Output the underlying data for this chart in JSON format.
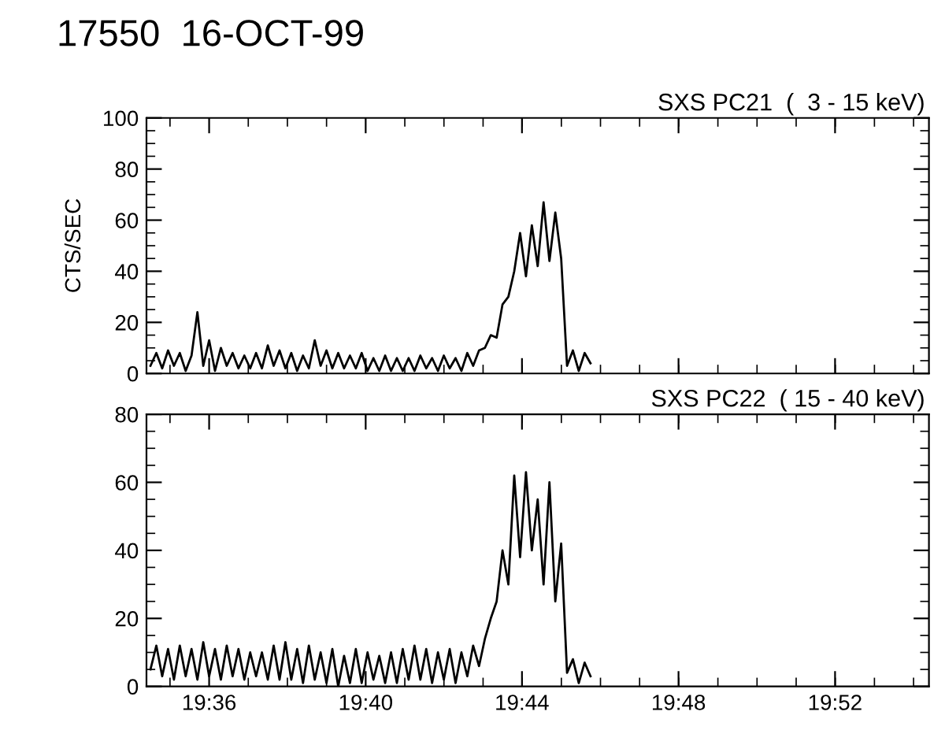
{
  "chart_data": [
    {
      "type": "line",
      "title": "17550  16-OCT-99",
      "subtitle": "SXS PC21  (  3 - 15 keV)",
      "ylabel": "CTS/SEC",
      "x": [
        19.575,
        19.5775,
        19.58,
        19.5825,
        19.585,
        19.5875,
        19.59,
        19.5925,
        19.595,
        19.5975,
        19.6,
        19.6025,
        19.605,
        19.6075,
        19.61,
        19.6125,
        19.615,
        19.6175,
        19.62,
        19.6225,
        19.625,
        19.6275,
        19.63,
        19.6325,
        19.635,
        19.6375,
        19.64,
        19.6425,
        19.645,
        19.6475,
        19.65,
        19.6525,
        19.655,
        19.6575,
        19.66,
        19.6625,
        19.665,
        19.6675,
        19.67,
        19.6725,
        19.675,
        19.6775,
        19.68,
        19.6825,
        19.685,
        19.6875,
        19.69,
        19.6925,
        19.695,
        19.6975,
        19.7,
        19.7025,
        19.705,
        19.7075,
        19.71,
        19.7125,
        19.715,
        19.7175,
        19.72,
        19.7225,
        19.725,
        19.7275,
        19.73,
        19.7325,
        19.735,
        19.7375,
        19.74,
        19.7425,
        19.745,
        19.7475,
        19.75,
        19.7525,
        19.755,
        19.7575,
        19.76,
        19.7625
      ],
      "series": [
        {
          "color": "#000000",
          "values": [
            3,
            8,
            2,
            9,
            3,
            8,
            1,
            7,
            24,
            3,
            13,
            1,
            10,
            3,
            8,
            2,
            7,
            2,
            8,
            2,
            11,
            3,
            9,
            2,
            8,
            1,
            7,
            2,
            13,
            3,
            9,
            2,
            8,
            2,
            7,
            2,
            8,
            1,
            6,
            1,
            7,
            1,
            6,
            1,
            6,
            1,
            7,
            2,
            6,
            1,
            7,
            2,
            6,
            1,
            8,
            3,
            9,
            10,
            15,
            14,
            27,
            30,
            40,
            55,
            38,
            58,
            42,
            67,
            44,
            63,
            45,
            3,
            9,
            1,
            8,
            4
          ]
        }
      ],
      "xlim": [
        19.5733,
        19.9067
      ],
      "ylim": [
        0,
        100
      ],
      "xticks": [
        {
          "value": 19.6,
          "label": null
        },
        {
          "value": 19.6667,
          "label": null
        },
        {
          "value": 19.7333,
          "label": null
        },
        {
          "value": 19.8,
          "label": null
        },
        {
          "value": 19.8667,
          "label": null
        }
      ],
      "yticks": [
        0,
        20,
        40,
        60,
        80,
        100
      ],
      "tick_labels": "y",
      "grid": false,
      "marker": "none",
      "line_style": "solid"
    },
    {
      "type": "line",
      "subtitle": "SXS PC22  ( 15 - 40 keV)",
      "x": [
        19.575,
        19.5775,
        19.58,
        19.5825,
        19.585,
        19.5875,
        19.59,
        19.5925,
        19.595,
        19.5975,
        19.6,
        19.6025,
        19.605,
        19.6075,
        19.61,
        19.6125,
        19.615,
        19.6175,
        19.62,
        19.6225,
        19.625,
        19.6275,
        19.63,
        19.6325,
        19.635,
        19.6375,
        19.64,
        19.6425,
        19.645,
        19.6475,
        19.65,
        19.6525,
        19.655,
        19.6575,
        19.66,
        19.6625,
        19.665,
        19.6675,
        19.67,
        19.6725,
        19.675,
        19.6775,
        19.68,
        19.6825,
        19.685,
        19.6875,
        19.69,
        19.6925,
        19.695,
        19.6975,
        19.7,
        19.7025,
        19.705,
        19.7075,
        19.71,
        19.7125,
        19.715,
        19.7175,
        19.72,
        19.7225,
        19.725,
        19.7275,
        19.73,
        19.7325,
        19.735,
        19.7375,
        19.74,
        19.7425,
        19.745,
        19.7475,
        19.75,
        19.7525,
        19.755,
        19.7575,
        19.76,
        19.7625
      ],
      "series": [
        {
          "color": "#000000",
          "values": [
            5,
            12,
            3,
            11,
            2,
            12,
            3,
            11,
            2,
            13,
            3,
            11,
            2,
            12,
            3,
            11,
            2,
            10,
            3,
            10,
            2,
            12,
            2,
            13,
            2,
            11,
            1,
            12,
            2,
            10,
            1,
            11,
            0,
            9,
            1,
            11,
            1,
            10,
            2,
            9,
            1,
            10,
            1,
            11,
            2,
            12,
            2,
            11,
            1,
            10,
            2,
            11,
            1,
            10,
            3,
            12,
            6,
            14,
            20,
            25,
            40,
            30,
            62,
            38,
            63,
            40,
            55,
            30,
            60,
            25,
            42,
            4,
            8,
            1,
            7,
            3
          ]
        }
      ],
      "xlim": [
        19.5733,
        19.9067
      ],
      "ylim": [
        0,
        80
      ],
      "xticks": [
        {
          "value": 19.6,
          "label": "19:36"
        },
        {
          "value": 19.6667,
          "label": "19:40"
        },
        {
          "value": 19.7333,
          "label": "19:44"
        },
        {
          "value": 19.8,
          "label": "19:48"
        },
        {
          "value": 19.8667,
          "label": "19:52"
        }
      ],
      "yticks": [
        0,
        20,
        40,
        60,
        80
      ],
      "grid": false,
      "marker": "none",
      "line_style": "solid"
    }
  ]
}
